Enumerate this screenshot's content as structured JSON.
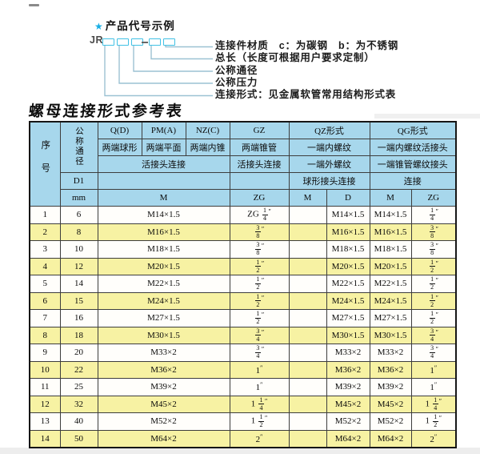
{
  "diagram": {
    "star": "★",
    "heading": "产品代号示例",
    "code_prefix": "JR",
    "labels": [
      "连接件材质　c：为碳钢　b：为不锈钢",
      "总长（长度可根据用户要求定制）",
      "公称通径",
      "公称压力",
      "连接形式：见金属软管常用结构形式表"
    ]
  },
  "title": "螺母连接形式参考表",
  "table": {
    "colors": {
      "header_bg": "#a7d7ec",
      "alt_row_bg": "#f7f2a3",
      "accent_cyan": "#17aee4"
    },
    "header": {
      "seq": "序号",
      "diameter": "公称通径",
      "d1": "D1",
      "mm": "mm",
      "col_q": "Q(D)",
      "col_pm": "PM(A)",
      "col_nz": "NZ(C)",
      "col_gz": "GZ",
      "col_qz": "QZ形式",
      "col_qg": "QG形式",
      "r2": [
        "两端球形",
        "两端平面",
        "两端内锥",
        "两端锥管",
        "一端内螺纹",
        "一端内螺纹活接头"
      ],
      "r3": [
        "活接头连接",
        "活接头连接",
        "一端外螺纹",
        "一端锥管螺纹接头"
      ],
      "r4": [
        "球形接头连接",
        "连接"
      ],
      "r5": [
        "M",
        "ZG",
        "M",
        "D",
        "M",
        "ZG"
      ]
    },
    "rows": [
      [
        "1",
        "6",
        "M14×1.5",
        "ZG 1/4″",
        "",
        "M14×1.5",
        "M14×1.5",
        "1/4″"
      ],
      [
        "2",
        "8",
        "M16×1.5",
        "3/8″",
        "",
        "M16×1.5",
        "M16×1.5",
        "3/8″"
      ],
      [
        "3",
        "10",
        "M18×1.5",
        "3/8″",
        "",
        "M18×1.5",
        "M18×1.5",
        "3/8″"
      ],
      [
        "4",
        "12",
        "M20×1.5",
        "1/2″",
        "",
        "M20×1.5",
        "M20×1.5",
        "1/2″"
      ],
      [
        "5",
        "14",
        "M22×1.5",
        "1/2″",
        "",
        "M22×1.5",
        "M22×1.5",
        "1/2″"
      ],
      [
        "6",
        "15",
        "M24×1.5",
        "1/2″",
        "",
        "M24×1.5",
        "M24×1.5",
        "1/2″"
      ],
      [
        "7",
        "16",
        "M27×1.5",
        "1/2″",
        "",
        "M27×1.5",
        "M27×1.5",
        "1/2″"
      ],
      [
        "8",
        "18",
        "M30×1.5",
        "3/4″",
        "",
        "M30×1.5",
        "M30×1.5",
        "3/4″"
      ],
      [
        "9",
        "20",
        "M33×2",
        "3/4″",
        "",
        "M33×2",
        "M33×2",
        "3/4″"
      ],
      [
        "10",
        "22",
        "M36×2",
        "1″",
        "",
        "M36×2",
        "M36×2",
        "1″"
      ],
      [
        "11",
        "25",
        "M39×2",
        "1″",
        "",
        "M39×2",
        "M39×2",
        "1″"
      ],
      [
        "12",
        "32",
        "M45×2",
        "1 1/4″",
        "",
        "M45×2",
        "M45×2",
        "1 1/4″"
      ],
      [
        "13",
        "40",
        "M52×2",
        "1 1/2″",
        "",
        "M52×2",
        "M52×2",
        "1 1/2″"
      ],
      [
        "14",
        "50",
        "M64×2",
        "2″",
        "",
        "M64×2",
        "M64×2",
        "2″"
      ]
    ]
  }
}
